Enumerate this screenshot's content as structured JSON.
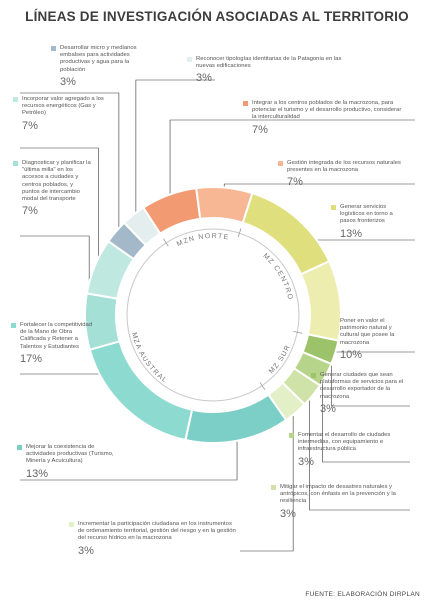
{
  "title": "LÍNEAS DE INVESTIGACIÓN ASOCIADAS AL TERRITORIO",
  "source": "FUENTE: ELABORACIÓN DIRPLAN",
  "chart_data": {
    "type": "pie",
    "style": "donut",
    "groups": [
      {
        "name": "MZN NORTE"
      },
      {
        "name": "MZ CENTRO"
      },
      {
        "name": "MZ SUR"
      },
      {
        "name": "MZA AUSTRAL"
      }
    ],
    "slices": [
      {
        "label": "Integrar a los centros poblados de la macrozona, para potenciar el turismo y el desarrollo productivo, considerar la interculturalidad",
        "value": 7,
        "display": "7%",
        "group": "MZN NORTE",
        "color": "#f29b73"
      },
      {
        "label": "Gestión integrada de los recursos naturales presentes en la macrozona",
        "value": 7,
        "display": "7%",
        "group": "MZN NORTE",
        "color": "#f7b794"
      },
      {
        "label": "Generar servicios logísticos en torno a pasos fronterizos",
        "value": 13,
        "display": "13%",
        "group": "MZ CENTRO",
        "color": "#dfe07d"
      },
      {
        "label": "Poner en valor el patrimonio natural y cultural que posee la macrozona",
        "value": 10,
        "display": "10%",
        "group": "MZ CENTRO",
        "color": "#ecedae"
      },
      {
        "label": "Generar ciudades que sean plataformas de servicios para el desarrollo exportador de la macrozona",
        "value": 3,
        "display": "3%",
        "group": "MZ SUR",
        "color": "#9cc26a"
      },
      {
        "label": "Fomentar el desarrollo de ciudades intermedias, con equipamiento e infraestructura pública",
        "value": 3,
        "display": "3%",
        "group": "MZ SUR",
        "color": "#b7d58a"
      },
      {
        "label": "Mitigar el impacto de desastres naturales y antrópicos, con énfasis en la prevención y la resiliencia",
        "value": 3,
        "display": "3%",
        "group": "MZ SUR",
        "color": "#cfe3a8"
      },
      {
        "label": "Incrementar la participación ciudadana en los instrumentos de ordenamiento territorial, gestión del riesgo y en la gestión del recurso hídrico en la macrozona",
        "value": 3,
        "display": "3%",
        "group": "MZ SUR",
        "color": "#e3efc6"
      },
      {
        "label": "Mejorar la coexistencia de actividades productivas (Turismo, Minería y Acuicultura)",
        "value": 13,
        "display": "13%",
        "group": "MZA AUSTRAL",
        "color": "#7ccfc6"
      },
      {
        "label": "Fortalecer la competitividad de la Mano de Obra Calificada y Retener a Talentos y Estudiantes",
        "value": 17,
        "display": "17%",
        "group": "MZA AUSTRAL",
        "color": "#8ddad0"
      },
      {
        "label": "Diagnosticar y planificar la \"última milla\" en los accesos a ciudades y centros poblados, y puntos de intercambio modal del transporte",
        "value": 7,
        "display": "7%",
        "group": "MZA AUSTRAL",
        "color": "#a5e0d6"
      },
      {
        "label": "Incorporar valor agregado a los recursos energéticos (Gas y Petróleo)",
        "value": 7,
        "display": "7%",
        "group": "MZA AUSTRAL",
        "color": "#bfe8e1"
      },
      {
        "label": "Desarrollar micro y medianos embalses para actividades productivas y agua para la población",
        "value": 3,
        "display": "3%",
        "group": "MZA AUSTRAL",
        "color": "#a3b9ca"
      },
      {
        "label": "Reconocer tipologías identitarias de la Patagonia en las nuevas edificaciones",
        "value": 3,
        "display": "3%",
        "group": "MZA AUSTRAL",
        "color": "#e4eeee"
      }
    ]
  }
}
